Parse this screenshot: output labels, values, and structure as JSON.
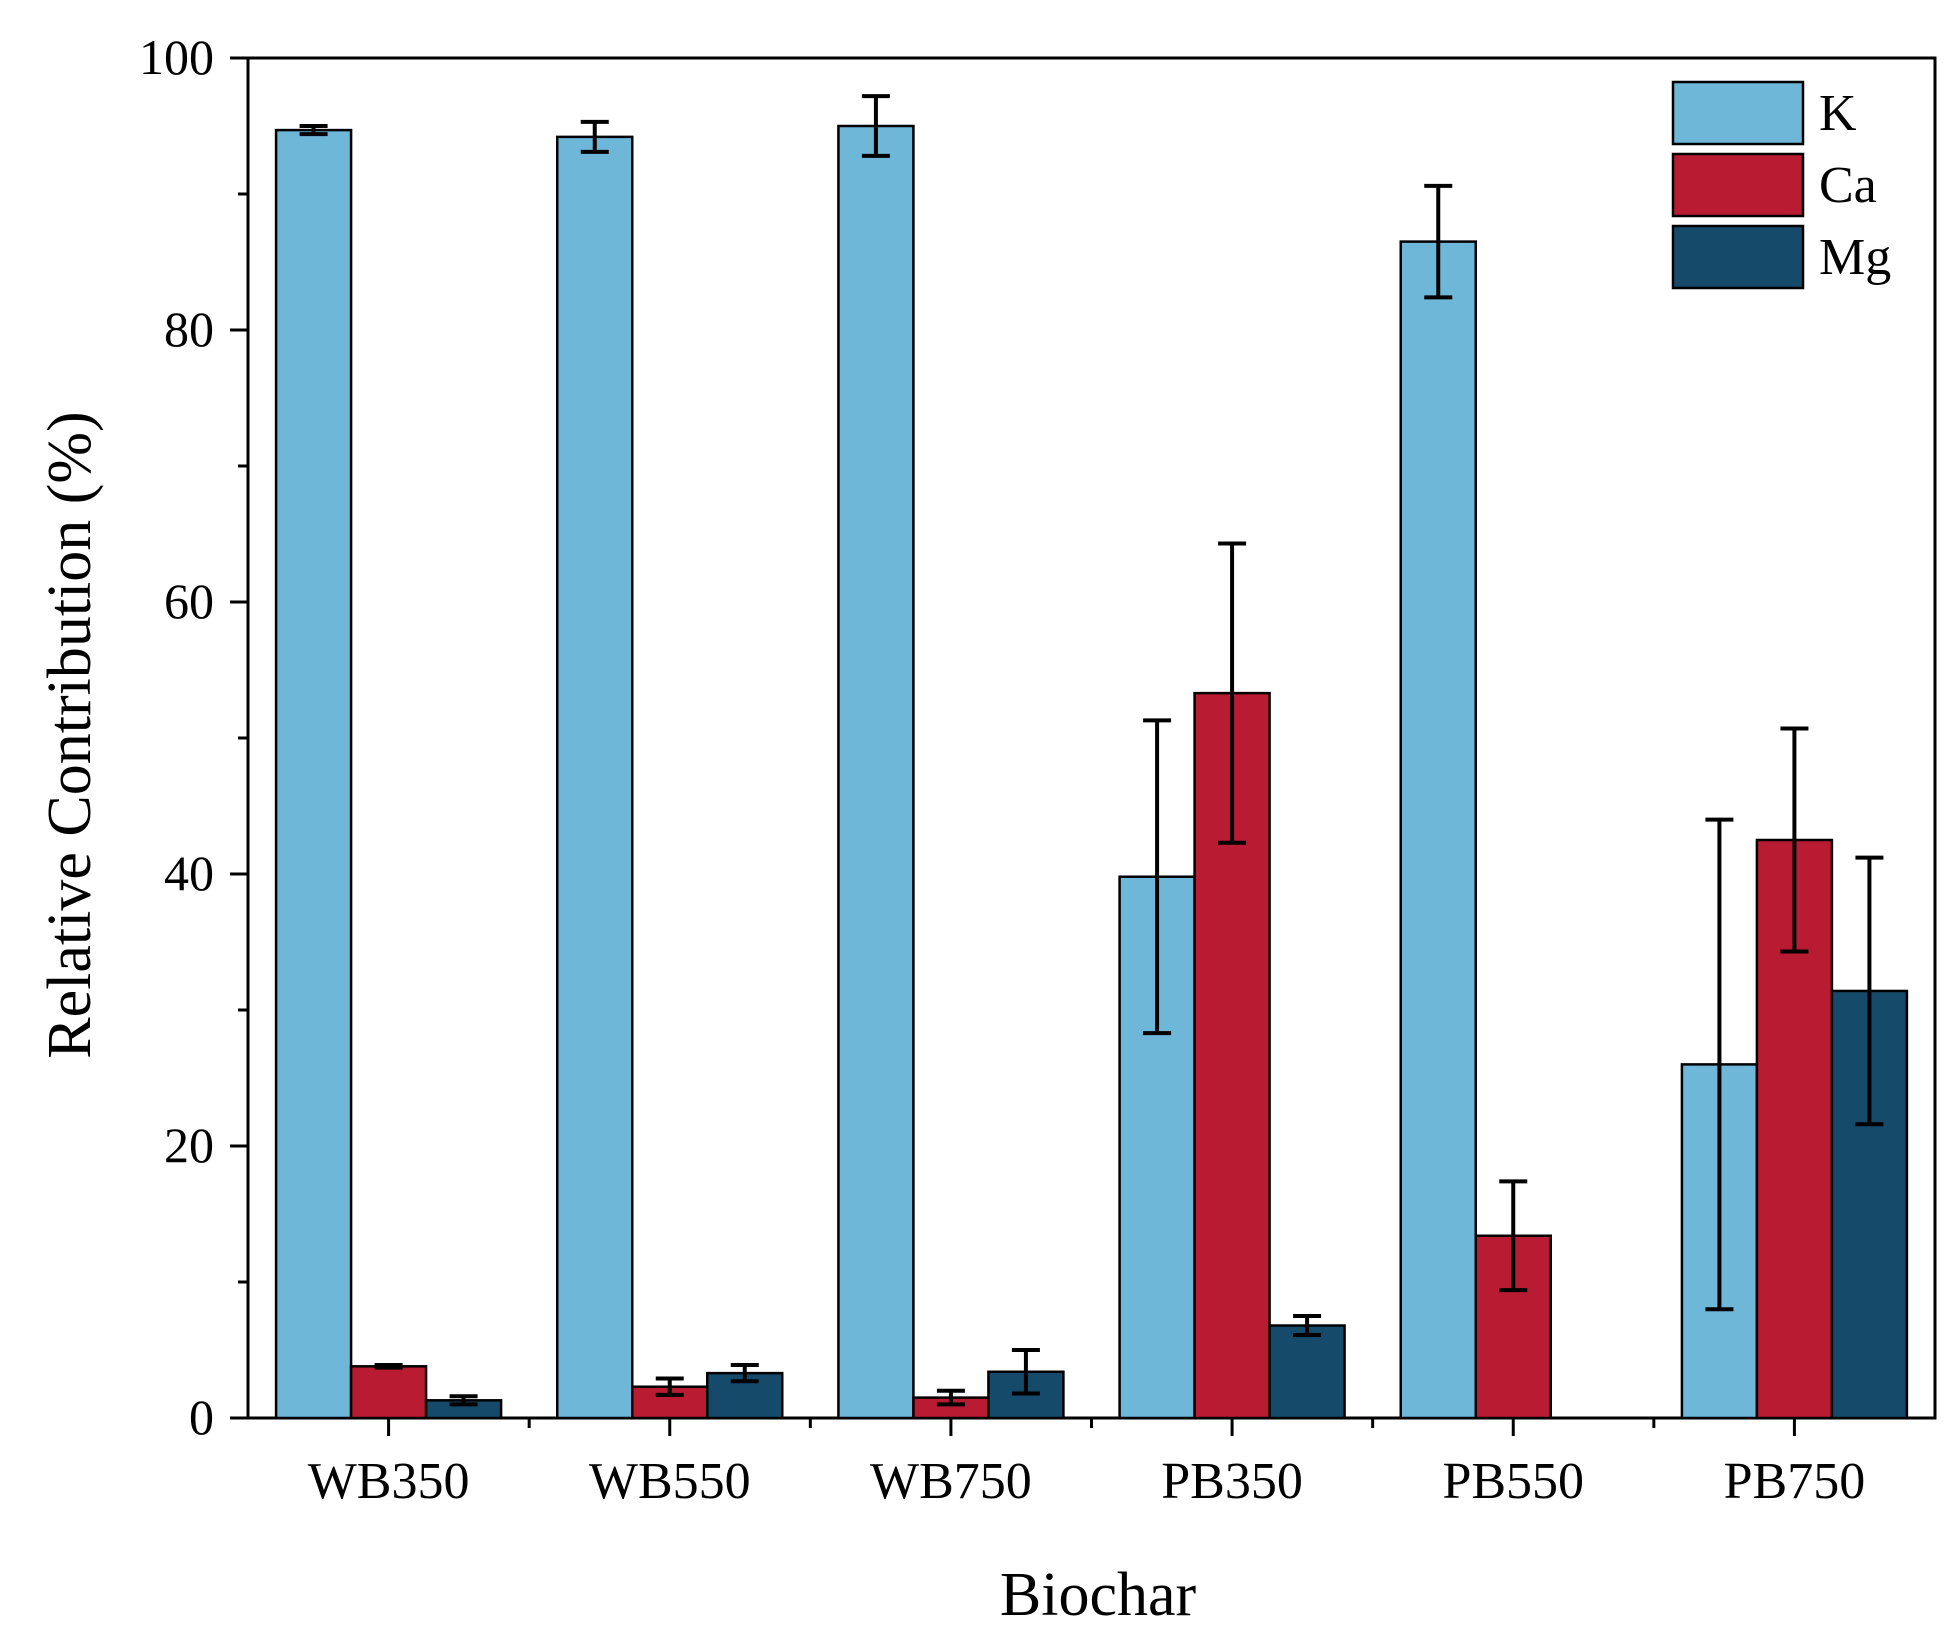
{
  "chart_data": {
    "type": "bar",
    "title": "",
    "xlabel": "Biochar",
    "ylabel": "Relative Contribution (%)",
    "ylim": [
      0,
      100
    ],
    "yticks": [
      0,
      20,
      40,
      60,
      80,
      100
    ],
    "ytick_labels": [
      "0",
      "20",
      "40",
      "60",
      "80",
      "100"
    ],
    "legend_position": "top-right",
    "categories": [
      "WB350",
      "WB550",
      "WB750",
      "PB350",
      "PB550",
      "PB750"
    ],
    "series": [
      {
        "name": "K",
        "color": "#6fb7d9",
        "values": [
          94.7,
          94.2,
          95.0,
          39.8,
          86.5,
          26.0
        ],
        "errors": [
          0.3,
          1.1,
          2.2,
          11.5,
          4.1,
          18.0
        ]
      },
      {
        "name": "Ca",
        "color": "#b91c32",
        "values": [
          3.8,
          2.3,
          1.5,
          53.3,
          13.4,
          42.5
        ],
        "errors": [
          0.1,
          0.6,
          0.5,
          11.0,
          4.0,
          8.2
        ]
      },
      {
        "name": "Mg",
        "color": "#164a6b",
        "values": [
          1.3,
          3.3,
          3.4,
          6.8,
          null,
          31.4
        ],
        "errors": [
          0.3,
          0.6,
          1.6,
          0.7,
          null,
          9.8
        ]
      }
    ]
  }
}
